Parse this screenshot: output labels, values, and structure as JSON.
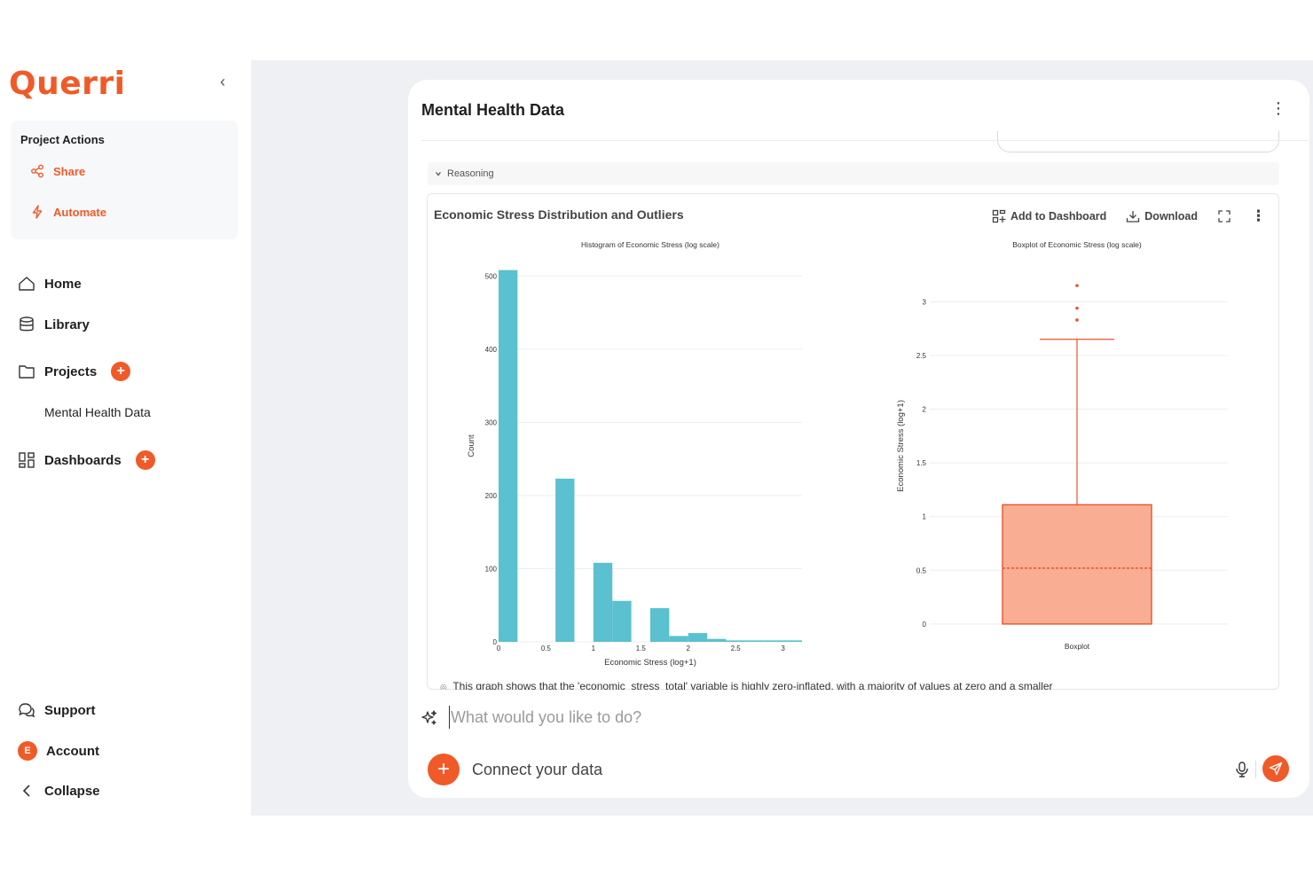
{
  "app": {
    "logo": "Querri"
  },
  "sidebar": {
    "project_actions_title": "Project Actions",
    "project_actions": [
      {
        "label": "Share",
        "icon": "share-icon"
      },
      {
        "label": "Automate",
        "icon": "lightning-icon"
      }
    ],
    "nav": {
      "home": "Home",
      "library": "Library",
      "projects": "Projects",
      "current_project": "Mental Health Data",
      "dashboards": "Dashboards",
      "support": "Support",
      "account": "Account",
      "account_initial": "E",
      "collapse": "Collapse"
    }
  },
  "main": {
    "title": "Mental Health Data",
    "reasoning_label": "Reasoning",
    "chart_card": {
      "title": "Economic Stress Distribution and Outliers",
      "add_to_dashboard": "Add to Dashboard",
      "download": "Download",
      "insight_text": "This graph shows that the 'economic_stress_total' variable is highly zero-inflated, with a majority of values at zero and a smaller"
    },
    "prompt": {
      "placeholder": "What would you like to do?"
    },
    "connect_label": "Connect your data"
  },
  "colors": {
    "accent": "#f05a28",
    "histogram": "#5bc0cf",
    "box_fill": "#f9ae94",
    "box_line": "#e8532e"
  },
  "chart_data": [
    {
      "type": "bar",
      "title": "Histogram of Economic Stress (log scale)",
      "xlabel": "Economic Stress (log+1)",
      "ylabel": "Count",
      "xlim": [
        0,
        3.2
      ],
      "ylim": [
        0,
        510
      ],
      "xticks": [
        0,
        0.5,
        1,
        1.5,
        2,
        2.5,
        3
      ],
      "xtick_labels": [
        "0",
        "0.5",
        "1",
        "1.5",
        "2",
        "2.5",
        "3"
      ],
      "yticks": [
        0,
        100,
        200,
        300,
        400,
        500
      ],
      "ytick_labels": [
        "0",
        "100",
        "200",
        "300",
        "400",
        "500"
      ],
      "grid": true,
      "bins": [
        {
          "x0": 0.0,
          "x1": 0.2,
          "count": 508
        },
        {
          "x0": 0.6,
          "x1": 0.8,
          "count": 223
        },
        {
          "x0": 1.0,
          "x1": 1.2,
          "count": 108
        },
        {
          "x0": 1.2,
          "x1": 1.4,
          "count": 56
        },
        {
          "x0": 1.6,
          "x1": 1.8,
          "count": 46
        },
        {
          "x0": 1.8,
          "x1": 2.0,
          "count": 8
        },
        {
          "x0": 2.0,
          "x1": 2.2,
          "count": 12
        },
        {
          "x0": 2.2,
          "x1": 2.4,
          "count": 4
        },
        {
          "x0": 2.4,
          "x1": 2.6,
          "count": 2
        },
        {
          "x0": 2.6,
          "x1": 2.8,
          "count": 2
        },
        {
          "x0": 2.8,
          "x1": 3.0,
          "count": 2
        },
        {
          "x0": 3.0,
          "x1": 3.2,
          "count": 2
        }
      ]
    },
    {
      "type": "box",
      "title": "Boxplot of Economic Stress (log scale)",
      "ylabel": "Economic Stress (log+1)",
      "category": "Boxplot",
      "ylim": [
        -0.1,
        3.3
      ],
      "yticks": [
        0,
        0.5,
        1,
        1.5,
        2,
        2.5,
        3
      ],
      "ytick_labels": [
        "0",
        "0.5",
        "1",
        "1.5",
        "2",
        "2.5",
        "3"
      ],
      "grid": true,
      "q1": 0,
      "median": 0.52,
      "q3": 1.11,
      "whisker_low": 0,
      "whisker_high": 2.65,
      "outliers": [
        2.83,
        2.94,
        3.15
      ]
    }
  ]
}
